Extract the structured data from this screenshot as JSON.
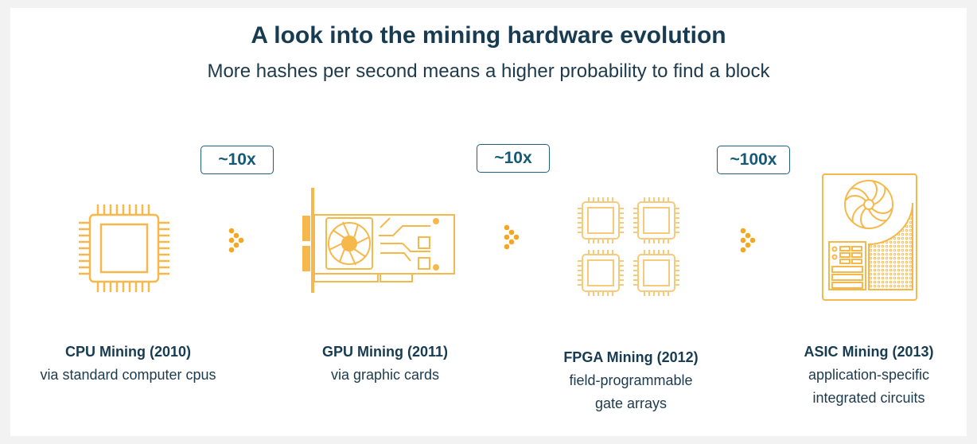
{
  "title": "A look into the mining hardware evolution",
  "subtitle": "More hashes per second means a higher probability to find a block",
  "multipliers": [
    "~10x",
    "~10x",
    "~100x"
  ],
  "stages": [
    {
      "name": "CPU Mining (2010)",
      "desc": [
        "via standard computer cpus"
      ],
      "icon": "cpu-chip-icon"
    },
    {
      "name": "GPU Mining (2011)",
      "desc": [
        "via graphic cards"
      ],
      "icon": "graphics-card-icon"
    },
    {
      "name": "FPGA Mining (2012)",
      "desc": [
        "field-programmable",
        "gate arrays"
      ],
      "icon": "fpga-chips-icon"
    },
    {
      "name": "ASIC Mining (2013)",
      "desc": [
        "application-specific",
        "integrated circuits"
      ],
      "icon": "asic-miner-icon"
    }
  ],
  "colors": {
    "accent": "#f7b84b",
    "arrow": "#f5a623",
    "text": "#173b50",
    "badge": "#1f607c"
  }
}
